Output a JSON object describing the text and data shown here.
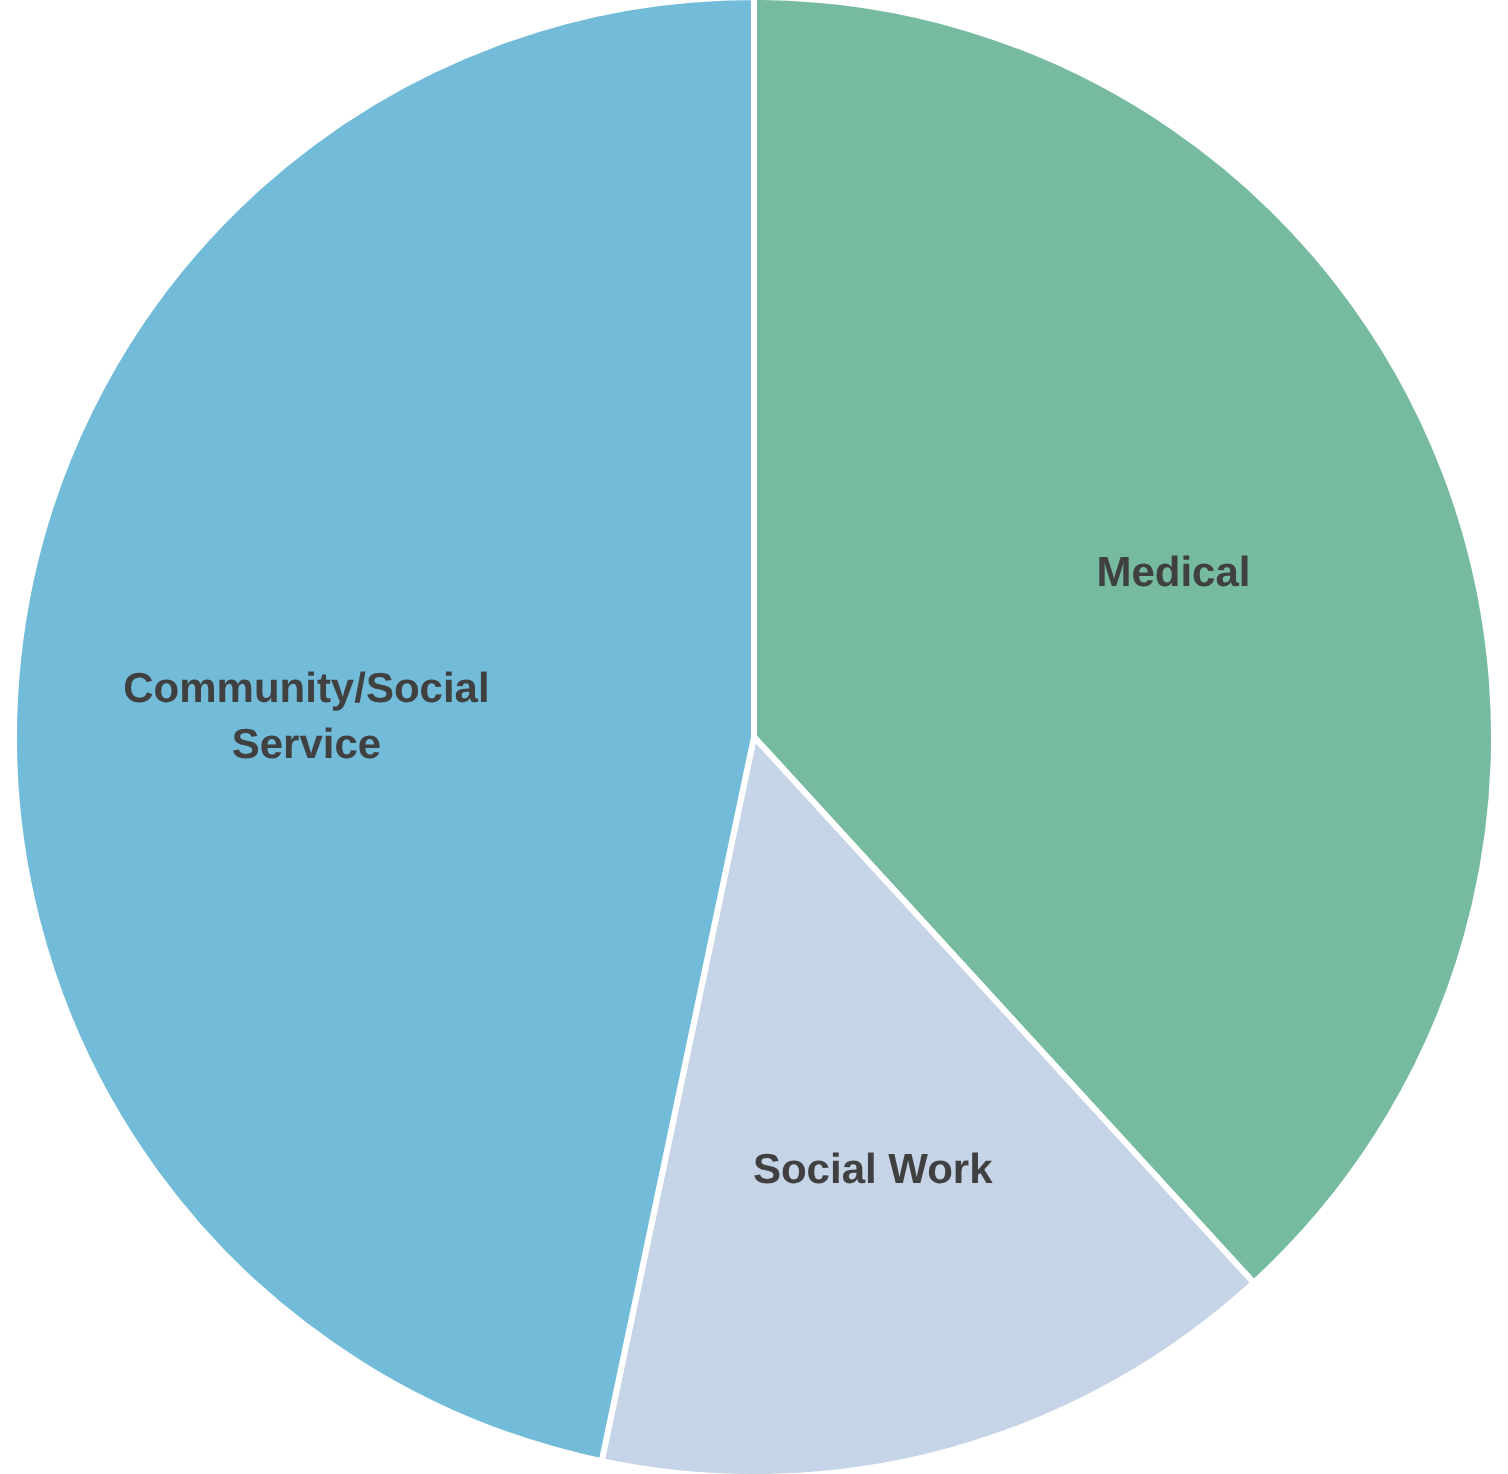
{
  "chart_data": {
    "type": "pie",
    "categories": [
      "Medical",
      "Social Work",
      "Community/Social Service"
    ],
    "values": [
      38.2,
      15.1,
      46.7
    ],
    "colors": [
      "#76bba0",
      "#c6d4e8",
      "#72bcd9"
    ]
  }
}
